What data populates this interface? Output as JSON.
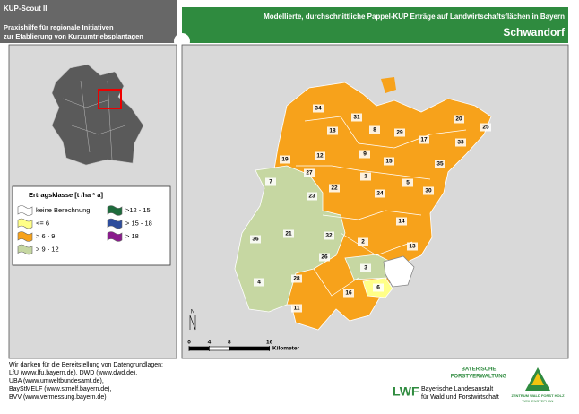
{
  "header": {
    "app": "KUP-Scout II",
    "subtitle_lines": [
      "Praxishilfe für regionale Initiativen",
      "zur Etablierung von Kurzumtriebsplantagen"
    ],
    "title": "Modellierte, durchschnittliche Pappel-KUP Erträge auf Landwirtschaftsflächen in Bayern",
    "district": "Schwandorf"
  },
  "legend": {
    "title": "Ertragsklasse [t /ha * a]",
    "items": [
      {
        "label": "keine Berechnung",
        "color": "#ffffff"
      },
      {
        "label": ">12 - 15",
        "color": "#1e6b3c"
      },
      {
        "label": "<= 6",
        "color": "#ffff88"
      },
      {
        "label": "> 15 - 18",
        "color": "#2d4d9c"
      },
      {
        "label": "> 6 - 9",
        "color": "#f7a21b"
      },
      {
        "label": "> 18",
        "color": "#8a1c8c"
      },
      {
        "label": "> 9 - 12",
        "color": "#c6d7a2"
      }
    ]
  },
  "map": {
    "region_labels": [
      "34",
      "31",
      "20",
      "25",
      "18",
      "8",
      "29",
      "17",
      "33",
      "19",
      "12",
      "9",
      "15",
      "35",
      "27",
      "7",
      "1",
      "5",
      "22",
      "23",
      "24",
      "30",
      "14",
      "21",
      "32",
      "36",
      "2",
      "13",
      "26",
      "3",
      "28",
      "4",
      "16",
      "6",
      "11"
    ],
    "north": "N"
  },
  "scale_bar": {
    "ticks": [
      0,
      4,
      8,
      16
    ],
    "unit": "Kilometer"
  },
  "footer": {
    "lines": [
      "Wir danken für die Bereitstellung von Datengrundlagen:",
      "LfU (www.lfu.bayern.de), DWD (www.dwd.de),",
      "UBA (www.umweltbundesamt.de),",
      "BayStMELF (www.stmelf.bayern.de),",
      "BVV (www.vermessung.bayern.de)"
    ]
  },
  "logos": {
    "forst": [
      "BAYERISCHE",
      "FORSTVERWALTUNG"
    ],
    "lwf": "LWF",
    "lwf_text": [
      "Bayerische Landesanstalt",
      "für Wald und Forstwirtschaft"
    ],
    "zentrum": [
      "ZENTRUM WALD FORST HOLZ",
      "WEIHENSTEPHAN"
    ]
  }
}
